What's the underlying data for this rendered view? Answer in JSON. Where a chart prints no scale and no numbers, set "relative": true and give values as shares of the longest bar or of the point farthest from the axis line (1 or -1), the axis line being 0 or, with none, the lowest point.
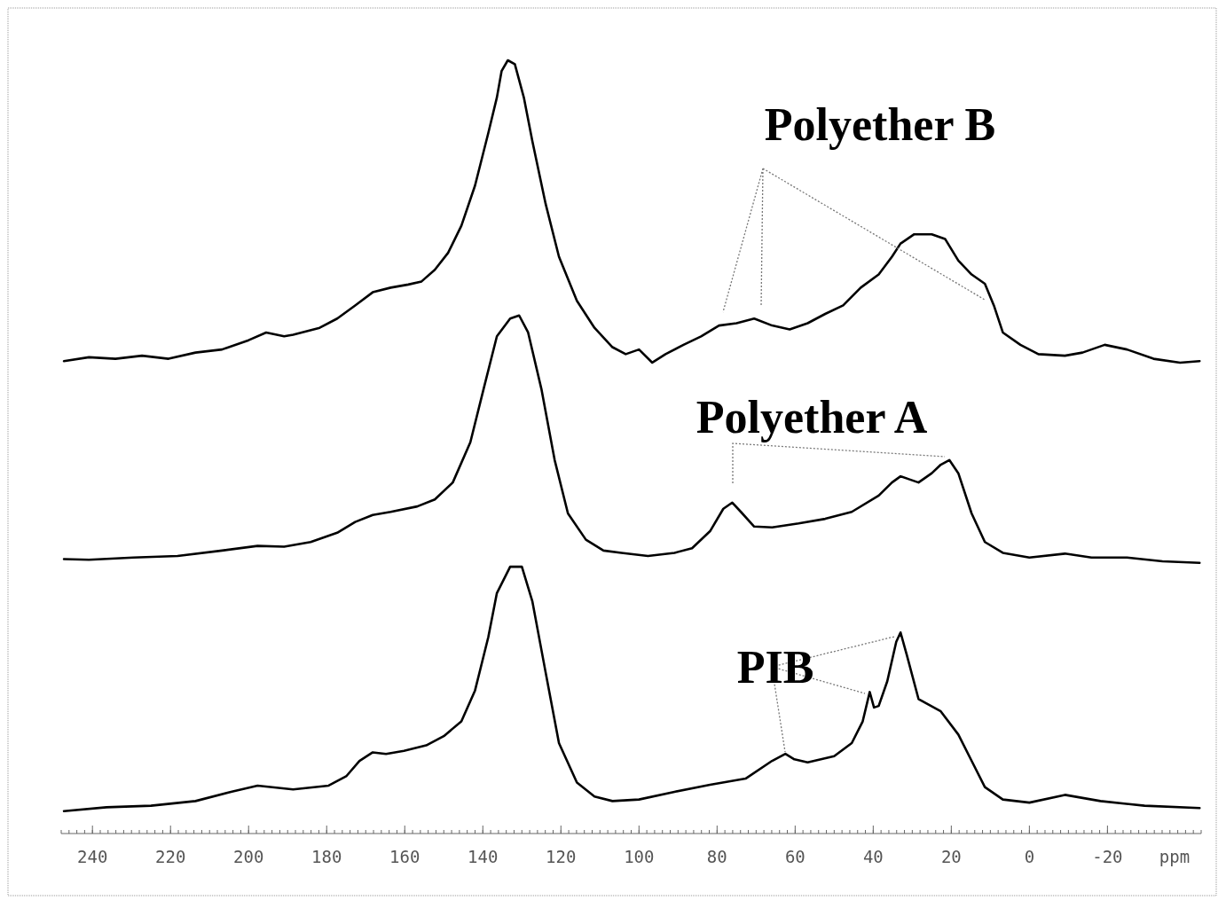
{
  "chart_data": {
    "type": "line",
    "relative": true,
    "xlabel": "ppm",
    "xlim": [
      248,
      -44
    ],
    "xticks": [
      240,
      220,
      200,
      180,
      160,
      140,
      120,
      100,
      80,
      60,
      40,
      20,
      0,
      -20
    ],
    "grid": false,
    "marker": "none",
    "line_style": "solid",
    "annotations": [
      "Polyether B",
      "Polyether A",
      "PIB"
    ],
    "series": [
      {
        "color": "#000000",
        "x": [
          247.3,
          240.9,
          234.1,
          227.3,
          220.5,
          213.6,
          206.8,
          200,
          195.5,
          190.9,
          188.6,
          181.8,
          177.3,
          172.7,
          168.2,
          163.6,
          159.1,
          155.7,
          152.3,
          148.9,
          145.5,
          142,
          138.6,
          136.4,
          135.2,
          133.6,
          131.8,
          129.5,
          127.3,
          123.9,
          120.5,
          115.9,
          111.4,
          106.8,
          103.4,
          100,
          96.6,
          93.2,
          88.6,
          84.1,
          79.5,
          75,
          70.5,
          65.9,
          61.4,
          56.8,
          52.3,
          47.7,
          43.2,
          38.6,
          35.2,
          33,
          29.5,
          25,
          21.6,
          18.2,
          14.8,
          11.4,
          9.1,
          6.8,
          2.3,
          -2.3,
          -9.1,
          -13.6,
          -19.3,
          -25,
          -31.8,
          -38.6,
          -43.6
        ],
        "values": [
          0.611,
          0.616,
          0.614,
          0.618,
          0.614,
          0.622,
          0.626,
          0.638,
          0.648,
          0.643,
          0.645,
          0.654,
          0.666,
          0.683,
          0.7,
          0.706,
          0.71,
          0.714,
          0.729,
          0.751,
          0.786,
          0.838,
          0.906,
          0.952,
          0.986,
          1,
          0.995,
          0.952,
          0.895,
          0.814,
          0.746,
          0.689,
          0.654,
          0.629,
          0.62,
          0.626,
          0.609,
          0.62,
          0.632,
          0.643,
          0.657,
          0.66,
          0.666,
          0.657,
          0.652,
          0.66,
          0.672,
          0.683,
          0.706,
          0.723,
          0.746,
          0.763,
          0.775,
          0.775,
          0.769,
          0.741,
          0.723,
          0.711,
          0.683,
          0.648,
          0.632,
          0.62,
          0.618,
          0.622,
          0.632,
          0.626,
          0.614,
          0.609,
          0.611
        ]
      },
      {
        "color": "#000000",
        "x": [
          247.3,
          240.9,
          229.5,
          218.2,
          206.8,
          197.7,
          190.9,
          184.1,
          177.3,
          172.7,
          168.2,
          163.6,
          156.8,
          152.3,
          147.7,
          143.2,
          139.8,
          136.4,
          133,
          130.7,
          128.4,
          125,
          121.6,
          118.2,
          113.6,
          109.1,
          104.5,
          97.7,
          90.9,
          86.4,
          81.8,
          78.4,
          76.1,
          73.9,
          70.5,
          65.9,
          59.1,
          52.3,
          45.5,
          38.6,
          35.2,
          33,
          30.7,
          28.4,
          25,
          22.7,
          20.5,
          18.2,
          14.8,
          11.4,
          6.8,
          0,
          -9.1,
          -15.9,
          -25,
          -34.1,
          -43.6
        ],
        "values": [
          0.355,
          0.354,
          0.357,
          0.359,
          0.366,
          0.372,
          0.371,
          0.377,
          0.389,
          0.403,
          0.412,
          0.416,
          0.423,
          0.432,
          0.454,
          0.506,
          0.575,
          0.643,
          0.666,
          0.67,
          0.648,
          0.575,
          0.483,
          0.414,
          0.38,
          0.366,
          0.363,
          0.359,
          0.363,
          0.369,
          0.391,
          0.42,
          0.428,
          0.416,
          0.397,
          0.396,
          0.401,
          0.407,
          0.416,
          0.437,
          0.454,
          0.462,
          0.458,
          0.454,
          0.466,
          0.477,
          0.483,
          0.466,
          0.414,
          0.377,
          0.363,
          0.357,
          0.362,
          0.357,
          0.357,
          0.352,
          0.35
        ]
      },
      {
        "color": "#000000",
        "x": [
          247.3,
          236.4,
          225,
          213.6,
          204.5,
          197.7,
          188.6,
          179.5,
          175,
          171.6,
          168.2,
          164.8,
          160.2,
          154.5,
          150,
          145.5,
          142,
          138.6,
          136.4,
          133,
          130,
          127.3,
          123.9,
          120.5,
          115.9,
          111.4,
          106.8,
          100,
          90.9,
          81.8,
          72.7,
          65.9,
          62.5,
          60.2,
          56.8,
          50,
          45.5,
          42.7,
          40.9,
          39.8,
          38.6,
          36.4,
          34.1,
          33,
          31.4,
          28.4,
          22.7,
          18.2,
          14.8,
          11.4,
          6.8,
          0,
          -9.1,
          -18.2,
          -29.5,
          -43.6
        ],
        "values": [
          0.029,
          0.034,
          0.036,
          0.042,
          0.054,
          0.062,
          0.057,
          0.062,
          0.074,
          0.094,
          0.105,
          0.103,
          0.107,
          0.114,
          0.126,
          0.145,
          0.185,
          0.254,
          0.311,
          0.345,
          0.345,
          0.3,
          0.208,
          0.117,
          0.066,
          0.048,
          0.042,
          0.044,
          0.054,
          0.063,
          0.071,
          0.094,
          0.103,
          0.096,
          0.092,
          0.1,
          0.117,
          0.145,
          0.183,
          0.163,
          0.165,
          0.197,
          0.248,
          0.26,
          0.231,
          0.174,
          0.158,
          0.128,
          0.094,
          0.06,
          0.044,
          0.04,
          0.05,
          0.042,
          0.036,
          0.033
        ]
      }
    ]
  }
}
